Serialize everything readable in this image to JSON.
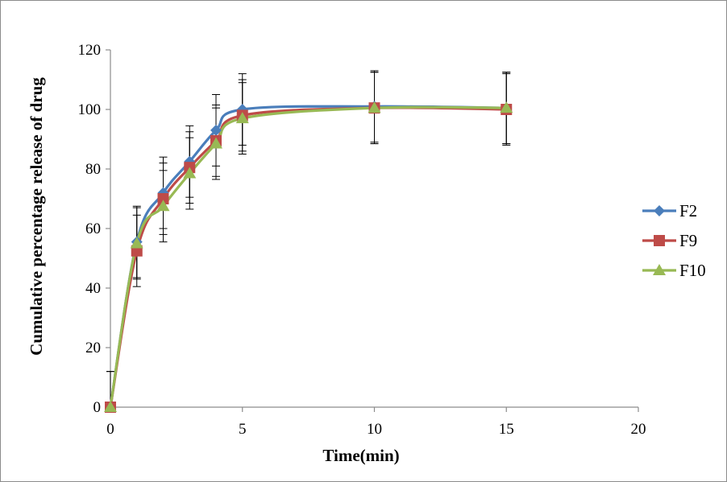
{
  "chart_data": {
    "type": "line",
    "xlabel": "Time(min)",
    "ylabel": "Cumulative percentage release of drug",
    "xlim": [
      0,
      20
    ],
    "ylim": [
      0,
      120
    ],
    "xticks": [
      "0",
      "5",
      "10",
      "15",
      "20"
    ],
    "yticks": [
      "0",
      "20",
      "40",
      "60",
      "80",
      "100",
      "120"
    ],
    "grid": false,
    "legend_position": "right",
    "x": [
      0,
      1,
      2,
      3,
      4,
      5,
      10,
      15
    ],
    "series": [
      {
        "name": "F2",
        "color": "#4a7ebb",
        "marker": "diamond",
        "values": [
          0,
          55.5,
          72,
          82.5,
          93,
          100,
          101,
          100.5
        ],
        "errors": [
          12,
          12,
          12,
          12,
          12,
          12,
          12,
          12
        ]
      },
      {
        "name": "F9",
        "color": "#be4b48",
        "marker": "square",
        "values": [
          0,
          52.5,
          70,
          80.5,
          89.5,
          98,
          100.5,
          100
        ],
        "errors": [
          12,
          12,
          12,
          12,
          12,
          12,
          12,
          12
        ]
      },
      {
        "name": "F10",
        "color": "#98b954",
        "marker": "triangle",
        "values": [
          0,
          55,
          67.5,
          78.5,
          88.5,
          97,
          100.5,
          100.5
        ],
        "errors": [
          12,
          12,
          12,
          12,
          12,
          12,
          12,
          12
        ]
      }
    ]
  }
}
